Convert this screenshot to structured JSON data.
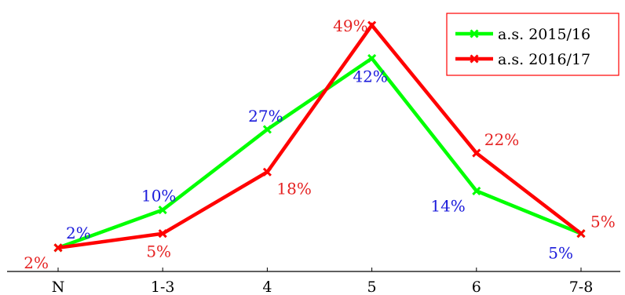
{
  "chart_data": {
    "type": "line",
    "categories": [
      "N",
      "1-3",
      "4",
      "5",
      "6",
      "7-8"
    ],
    "series": [
      {
        "name": "a.s. 2015/16",
        "color": "#00ff00",
        "label_color": "#1a1adb",
        "values": [
          2,
          10,
          27,
          42,
          14,
          5
        ],
        "labels": [
          "2%",
          "10%",
          "27%",
          "42%",
          "14%",
          "5%"
        ]
      },
      {
        "name": "a.s. 2016/17",
        "color": "#ff0000",
        "label_color": "#e52222",
        "values": [
          2,
          5,
          18,
          49,
          22,
          5
        ],
        "labels": [
          "2%",
          "5%",
          "18%",
          "49%",
          "22%",
          "5%"
        ]
      }
    ],
    "ylim": [
      -3,
      53
    ],
    "title": "",
    "xlabel": "",
    "ylabel": "",
    "grid": false,
    "legend_position": "top-right"
  }
}
